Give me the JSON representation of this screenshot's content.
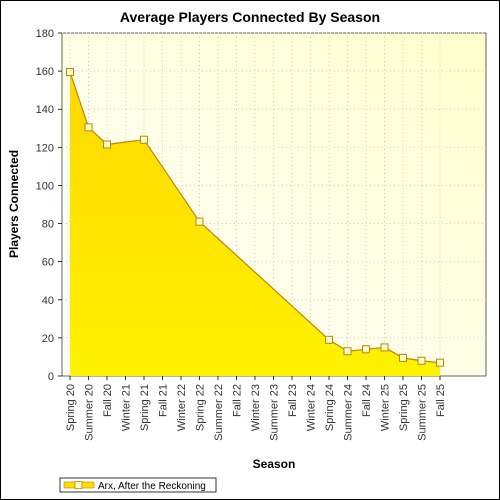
{
  "chart_data": {
    "type": "area",
    "title": "Average Players Connected By Season",
    "xlabel": "Season",
    "ylabel": "Players Connected",
    "ylim": [
      0,
      180
    ],
    "yticks": [
      0,
      20,
      40,
      60,
      80,
      100,
      120,
      140,
      160,
      180
    ],
    "categories": [
      "Spring 20",
      "Summer 20",
      "Fall 20",
      "Winter 21",
      "Spring 21",
      "Fall 21",
      "Winter 22",
      "Spring 22",
      "Summer 22",
      "Fall 22",
      "Winter 23",
      "Summer 23",
      "Fall 23",
      "Winter 24",
      "Spring 24",
      "Summer 24",
      "Fall 24",
      "Winter 25",
      "Spring 25",
      "Summer 25",
      "Fall 25"
    ],
    "series": [
      {
        "name": "Arx, After the Reckoning",
        "color": "#ffdd00",
        "marker_fill": "#ffffcc",
        "line_color": "#b8860b",
        "values": [
          159.5,
          130.5,
          121.5,
          null,
          124,
          null,
          null,
          81,
          null,
          null,
          null,
          null,
          null,
          null,
          19,
          13,
          14,
          15,
          9.5,
          8,
          7
        ]
      }
    ],
    "grid": true,
    "legend": "bottom-left",
    "plot_background": [
      "#ffffff",
      "#ffffcc"
    ]
  }
}
